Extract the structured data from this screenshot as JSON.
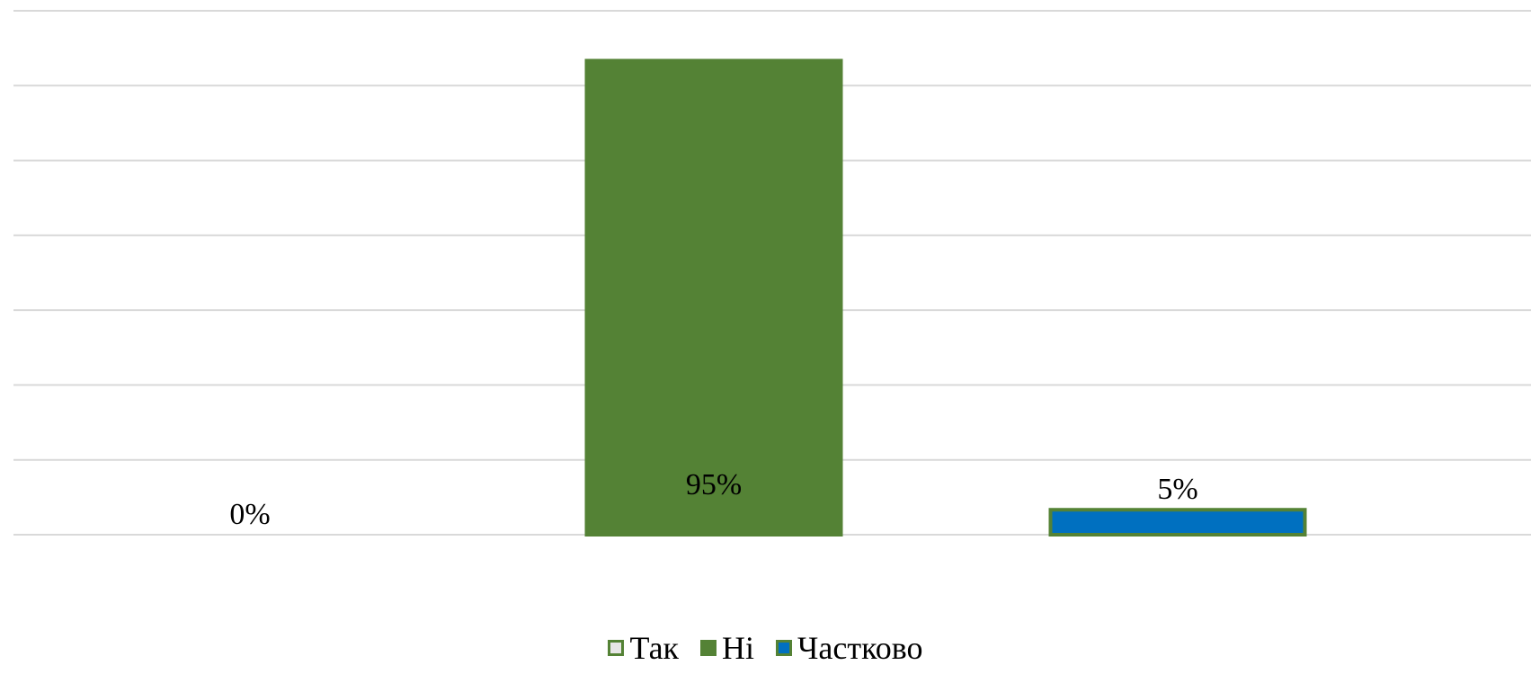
{
  "chart_data": {
    "type": "bar",
    "categories": [
      "Так",
      "Ні",
      "Частково"
    ],
    "values": [
      0,
      95,
      5
    ],
    "data_labels": [
      "0%",
      "95%",
      "5%"
    ],
    "ylim": [
      0,
      105
    ],
    "y_gridlines": [
      0,
      15,
      30,
      45,
      60,
      75,
      90,
      105
    ],
    "grid": true,
    "legend_position": "bottom",
    "colors": {
      "fills": [
        "#E7E6E6",
        "#548235",
        "#0070C0"
      ],
      "outline": "#548235",
      "gridline": "#D9D9D9"
    },
    "legend": [
      {
        "label": "Так",
        "color": "#E7E6E6"
      },
      {
        "label": "Ні",
        "color": "#548235"
      },
      {
        "label": "Частково",
        "color": "#0070C0"
      }
    ]
  }
}
